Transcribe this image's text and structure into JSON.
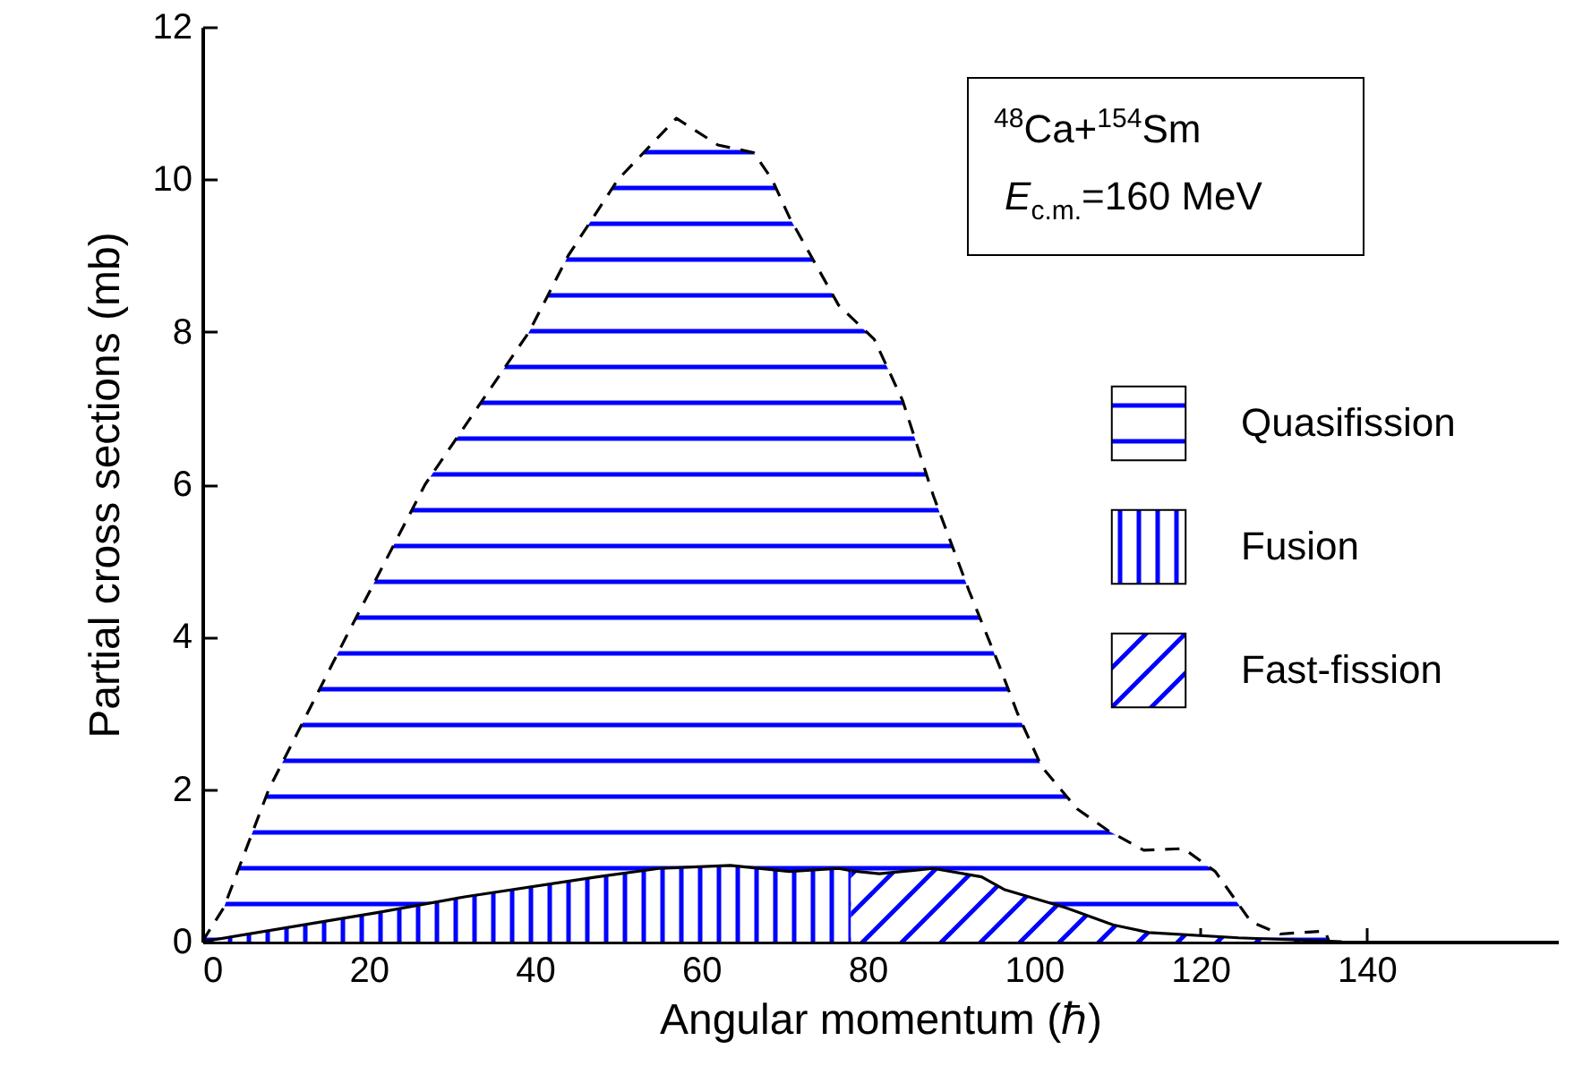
{
  "chart_data": {
    "type": "area",
    "xlabel": "Angular momentum (ℏ)",
    "ylabel": "Partial cross sections (mb)",
    "xlim": [
      0,
      163
    ],
    "xticks": [
      0,
      20,
      40,
      60,
      80,
      100,
      120,
      140
    ],
    "ylim": [
      0,
      12
    ],
    "yticks": [
      0,
      2,
      4,
      6,
      8,
      10,
      12
    ],
    "grid": false,
    "legend": "right",
    "annotations": [
      "$^{48}$Ca+$^{154}$Sm",
      "E$_{c.m.}$=160 MeV"
    ],
    "series": [
      {
        "name": "Quasifission",
        "color": "#0000ff",
        "line_style": "dashed",
        "x": [
          0,
          2.6,
          8,
          17.3,
          26.8,
          39.3,
          44,
          50,
          57,
          62,
          66.3,
          68.5,
          70.6,
          76.5,
          80.8,
          84.2,
          87.9,
          92.2,
          95.9,
          98,
          100.9,
          105.2,
          109,
          113.2,
          118,
          121.8,
          126.1,
          129.6,
          135,
          135.5
        ],
        "values": [
          0,
          0.45,
          2,
          4,
          6,
          8,
          9,
          10,
          10.8,
          10.45,
          10.35,
          10,
          9.5,
          8.35,
          7.9,
          7.1,
          5.85,
          4.6,
          3.6,
          3.0,
          2.3,
          1.74,
          1.45,
          1.2,
          1.22,
          0.92,
          0.26,
          0.1,
          0.14,
          0
        ]
      },
      {
        "name": "Fusion",
        "color": "#0000ff",
        "line_style": "solid",
        "x": [
          0,
          21,
          31.7,
          47.5,
          54.9,
          63.5,
          70.6,
          76.5,
          78
        ],
        "values": [
          0,
          0.38,
          0.59,
          0.85,
          0.96,
          1.0,
          0.92,
          0.96,
          0.93
        ]
      },
      {
        "name": "Fast-fission",
        "color": "#0000ff",
        "line_style": "solid",
        "x": [
          78,
          81.4,
          87.9,
          93.7,
          96.5,
          103.7,
          109.5,
          113.8,
          124.6,
          137
        ],
        "values": [
          0.93,
          0.89,
          0.96,
          0.85,
          0.68,
          0.45,
          0.22,
          0.12,
          0.05,
          0
        ]
      }
    ]
  }
}
